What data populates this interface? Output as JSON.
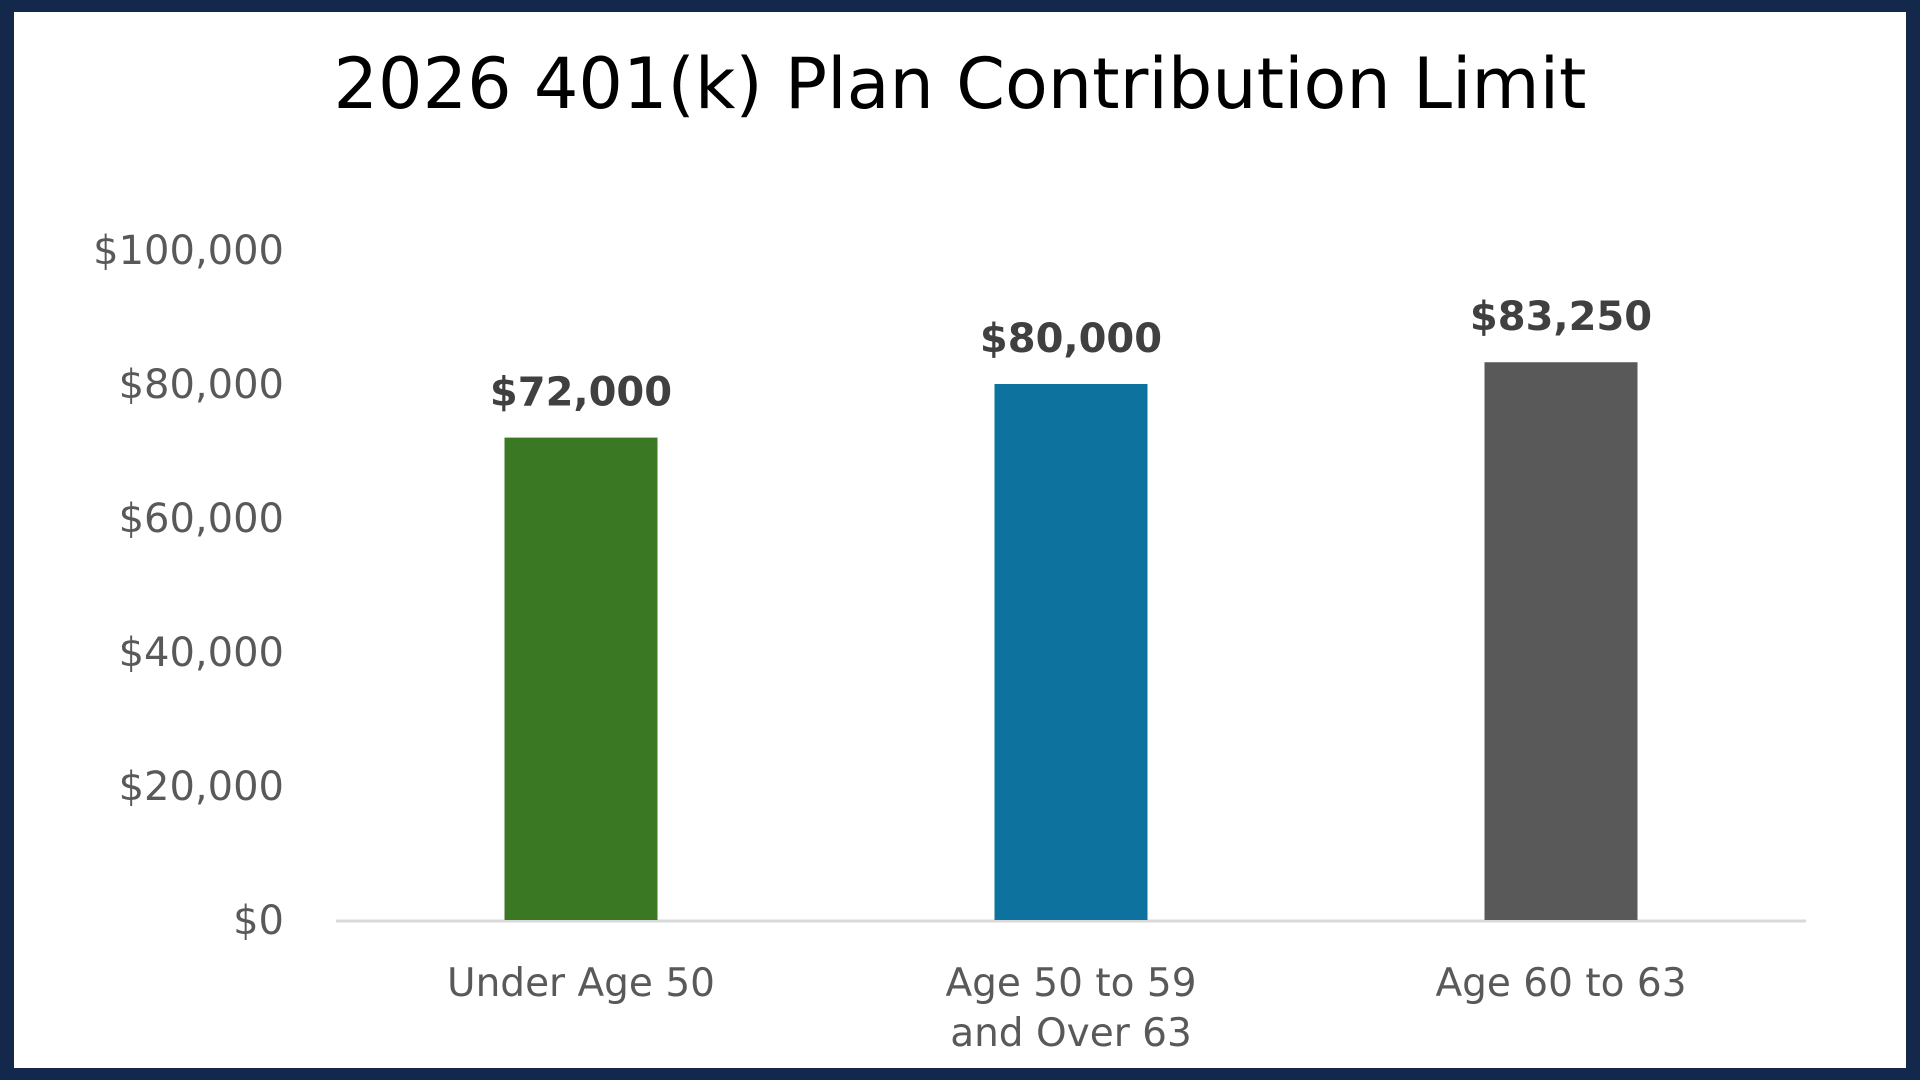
{
  "chart_data": {
    "type": "bar",
    "title": "2026 401(k) Plan Contribution Limit",
    "categories": [
      [
        "Under Age 50"
      ],
      [
        "Age 50 to 59",
        "and Over 63"
      ],
      [
        "Age 60 to 63"
      ]
    ],
    "values": [
      72000,
      80000,
      83250
    ],
    "data_labels": [
      "$72,000",
      "$80,000",
      "$83,250"
    ],
    "bar_colors": [
      "#3b7824",
      "#0e729e",
      "#595959"
    ],
    "ylim": [
      0,
      100000
    ],
    "yticks": [
      0,
      20000,
      40000,
      60000,
      80000,
      100000
    ],
    "ytick_labels": [
      "$0",
      "$20,000",
      "$40,000",
      "$60,000",
      "$80,000",
      "$100,000"
    ],
    "xlabel": "",
    "ylabel": "",
    "grid": false,
    "legend": "none"
  }
}
